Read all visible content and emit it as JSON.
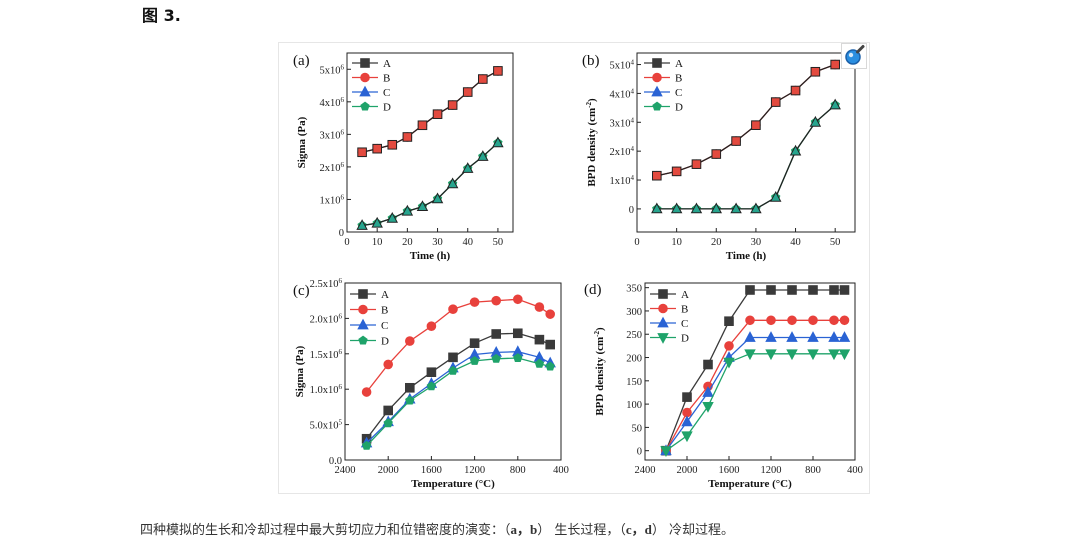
{
  "figure_label": "图 3.",
  "caption": {
    "part1": "四种模拟的生长和冷却过程中最大剪切应力和位错密度的演变：（",
    "bold1": "a，b",
    "part2": "） 生长过程，（",
    "bold2": "c，d",
    "part3": "） 冷却过程。"
  },
  "zoom_icon": "magnifier-icon",
  "colors": {
    "A": "#3a3a3a",
    "B": "#e8413c",
    "C": "#2a63d4",
    "D": "#1fa36a",
    "redfill": "#e34a3f",
    "tealfill": "#27a58e"
  },
  "chart_data": [
    {
      "panel": "(a)",
      "type": "line",
      "xlabel": "Time (h)",
      "ylabel": "Sigma (Pa)",
      "xlim": [
        0,
        55
      ],
      "ylim": [
        0,
        5500000
      ],
      "xticks": [
        0,
        10,
        20,
        30,
        40,
        50
      ],
      "xtick_labels": [
        "0",
        "10",
        "20",
        "30",
        "40",
        "50"
      ],
      "yticks": [
        0,
        1000000,
        2000000,
        3000000,
        4000000,
        5000000
      ],
      "ytick_labels": [
        "0",
        "1x10^6",
        "2x10^6",
        "3x10^6",
        "4x10^6",
        "5x10^6"
      ],
      "legend": [
        "A",
        "B",
        "C",
        "D"
      ],
      "x": [
        5,
        10,
        15,
        20,
        25,
        30,
        35,
        40,
        45,
        50
      ],
      "series": [
        {
          "name": "A",
          "values": [
            2450000,
            2560000,
            2680000,
            2920000,
            3280000,
            3620000,
            3900000,
            4300000,
            4700000,
            4950000
          ]
        },
        {
          "name": "B",
          "values": [
            2450000,
            2560000,
            2680000,
            2920000,
            3280000,
            3620000,
            3900000,
            4300000,
            4700000,
            4950000
          ]
        },
        {
          "name": "C",
          "values": [
            200000,
            270000,
            420000,
            640000,
            780000,
            1020000,
            1480000,
            1950000,
            2320000,
            2740000
          ]
        },
        {
          "name": "D",
          "values": [
            200000,
            270000,
            420000,
            640000,
            780000,
            1020000,
            1480000,
            1950000,
            2320000,
            2740000
          ]
        }
      ]
    },
    {
      "panel": "(b)",
      "type": "line",
      "xlabel": "Time (h)",
      "ylabel": "BPD density (cm^-2)",
      "xlim": [
        0,
        55
      ],
      "ylim": [
        -8000,
        54000
      ],
      "xticks": [
        0,
        10,
        20,
        30,
        40,
        50
      ],
      "xtick_labels": [
        "0",
        "10",
        "20",
        "30",
        "40",
        "50"
      ],
      "yticks": [
        0,
        10000,
        20000,
        30000,
        40000,
        50000
      ],
      "ytick_labels": [
        "0",
        "1x10^4",
        "2x10^4",
        "3x10^4",
        "4x10^4",
        "5x10^4"
      ],
      "legend": [
        "A",
        "B",
        "C",
        "D"
      ],
      "x": [
        5,
        10,
        15,
        20,
        25,
        30,
        35,
        40,
        45,
        50
      ],
      "series": [
        {
          "name": "A",
          "values": [
            11500,
            13000,
            15500,
            19000,
            23500,
            29000,
            37000,
            41000,
            47500,
            50000
          ]
        },
        {
          "name": "B",
          "values": [
            11500,
            13000,
            15500,
            19000,
            23500,
            29000,
            37000,
            41000,
            47500,
            50000
          ]
        },
        {
          "name": "C",
          "values": [
            0,
            0,
            0,
            0,
            0,
            0,
            4000,
            20000,
            30000,
            36000
          ]
        },
        {
          "name": "D",
          "values": [
            0,
            0,
            0,
            0,
            0,
            0,
            4000,
            20000,
            30000,
            36000
          ]
        }
      ]
    },
    {
      "panel": "(c)",
      "type": "line",
      "xlabel": "Temperature (°C)",
      "ylabel": "Sigma (Pa)",
      "xlim": [
        2400,
        400
      ],
      "ylim": [
        0,
        2500000
      ],
      "xticks": [
        2400,
        2000,
        1600,
        1200,
        800,
        400
      ],
      "xtick_labels": [
        "2400",
        "2000",
        "1600",
        "1200",
        "800",
        "400"
      ],
      "yticks": [
        0,
        500000,
        1000000,
        1500000,
        2000000,
        2500000
      ],
      "ytick_labels": [
        "0.0",
        "5.0x10^5",
        "1.0x10^6",
        "1.5x10^6",
        "2.0x10^6",
        "2.5x10^6"
      ],
      "legend": [
        "A",
        "B",
        "C",
        "D"
      ],
      "x": [
        2200,
        2000,
        1800,
        1600,
        1400,
        1200,
        1000,
        800,
        600,
        500
      ],
      "series": [
        {
          "name": "A",
          "values": [
            300000,
            700000,
            1020000,
            1240000,
            1450000,
            1650000,
            1780000,
            1790000,
            1700000,
            1630000
          ]
        },
        {
          "name": "B",
          "values": [
            960000,
            1350000,
            1680000,
            1890000,
            2130000,
            2230000,
            2250000,
            2270000,
            2160000,
            2060000
          ]
        },
        {
          "name": "C",
          "values": [
            240000,
            540000,
            860000,
            1080000,
            1300000,
            1490000,
            1520000,
            1530000,
            1450000,
            1370000
          ]
        },
        {
          "name": "D",
          "values": [
            200000,
            520000,
            840000,
            1040000,
            1260000,
            1400000,
            1430000,
            1440000,
            1360000,
            1320000
          ]
        }
      ]
    },
    {
      "panel": "(d)",
      "type": "line",
      "xlabel": "Temperature (°C)",
      "ylabel": "BPD density (cm^-2)",
      "xlim": [
        2400,
        400
      ],
      "ylim": [
        -20,
        360
      ],
      "xticks": [
        2400,
        2000,
        1600,
        1200,
        800,
        400
      ],
      "xtick_labels": [
        "2400",
        "2000",
        "1600",
        "1200",
        "800",
        "400"
      ],
      "yticks": [
        0,
        50,
        100,
        150,
        200,
        250,
        300,
        350
      ],
      "ytick_labels": [
        "0",
        "50",
        "100",
        "150",
        "200",
        "250",
        "300",
        "350"
      ],
      "legend": [
        "A",
        "B",
        "C",
        "D"
      ],
      "x": [
        2200,
        2000,
        1800,
        1600,
        1400,
        1200,
        1000,
        800,
        600,
        500
      ],
      "series": [
        {
          "name": "A",
          "values": [
            0,
            115,
            185,
            278,
            345,
            345,
            345,
            345,
            345,
            345
          ]
        },
        {
          "name": "B",
          "values": [
            0,
            82,
            138,
            225,
            280,
            280,
            280,
            280,
            280,
            280
          ]
        },
        {
          "name": "C",
          "values": [
            0,
            62,
            125,
            200,
            243,
            243,
            243,
            243,
            243,
            243
          ]
        },
        {
          "name": "D",
          "values": [
            0,
            32,
            95,
            190,
            208,
            208,
            208,
            208,
            208,
            208
          ]
        }
      ]
    }
  ]
}
